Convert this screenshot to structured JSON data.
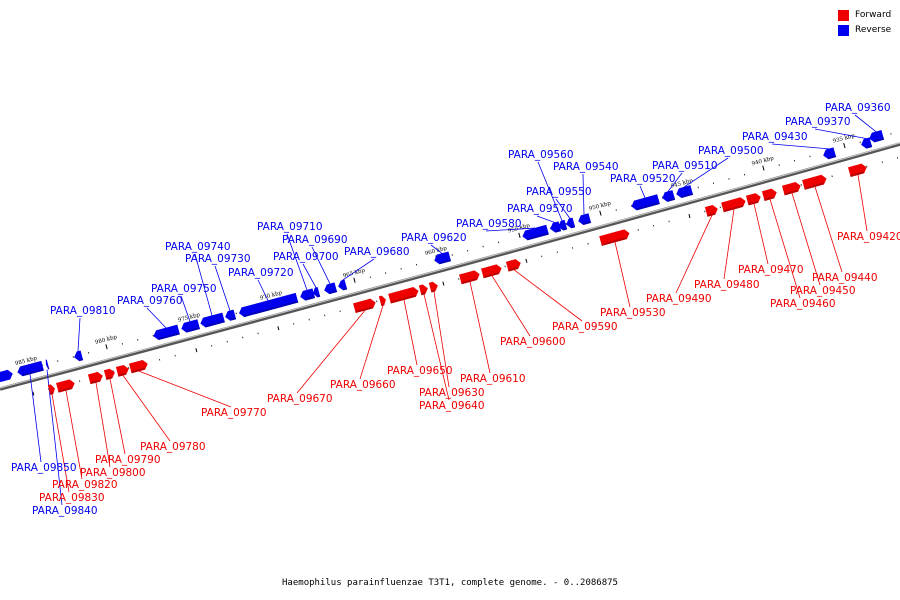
{
  "legend": {
    "forward": {
      "label": "Forward",
      "color": "#ee0000"
    },
    "reverse": {
      "label": "Reverse",
      "color": "#0000ee"
    }
  },
  "caption": "Haemophilus parainfluenzae T3T1, complete genome. - 0..2086875",
  "ticks": [
    {
      "label": "985 kbp",
      "kbp": 985
    },
    {
      "label": "980 kbp",
      "kbp": 980
    },
    {
      "label": "975 kbp",
      "kbp": 975
    },
    {
      "label": "970 kbp",
      "kbp": 970
    },
    {
      "label": "965 kbp",
      "kbp": 965
    },
    {
      "label": "960 kbp",
      "kbp": 960
    },
    {
      "label": "955 kbp",
      "kbp": 955
    },
    {
      "label": "950 kbp",
      "kbp": 950
    },
    {
      "label": "945 kbp",
      "kbp": 945
    },
    {
      "label": "940 kbp",
      "kbp": 940
    },
    {
      "label": "935 kbp",
      "kbp": 935
    }
  ],
  "genes": [
    {
      "id": "PARA_09360",
      "strand": "reverse"
    },
    {
      "id": "PARA_09370",
      "strand": "reverse"
    },
    {
      "id": "PARA_09420",
      "strand": "forward"
    },
    {
      "id": "PARA_09430",
      "strand": "reverse"
    },
    {
      "id": "PARA_09440",
      "strand": "forward"
    },
    {
      "id": "PARA_09450",
      "strand": "forward"
    },
    {
      "id": "PARA_09460",
      "strand": "forward"
    },
    {
      "id": "PARA_09470",
      "strand": "forward"
    },
    {
      "id": "PARA_09480",
      "strand": "forward"
    },
    {
      "id": "PARA_09490",
      "strand": "forward"
    },
    {
      "id": "PARA_09500",
      "strand": "reverse"
    },
    {
      "id": "PARA_09510",
      "strand": "reverse"
    },
    {
      "id": "PARA_09520",
      "strand": "reverse"
    },
    {
      "id": "PARA_09530",
      "strand": "forward"
    },
    {
      "id": "PARA_09540",
      "strand": "reverse"
    },
    {
      "id": "PARA_09550",
      "strand": "reverse"
    },
    {
      "id": "PARA_09560",
      "strand": "reverse"
    },
    {
      "id": "PARA_09570",
      "strand": "reverse"
    },
    {
      "id": "PARA_09580",
      "strand": "reverse"
    },
    {
      "id": "PARA_09590",
      "strand": "forward"
    },
    {
      "id": "PARA_09600",
      "strand": "forward"
    },
    {
      "id": "PARA_09610",
      "strand": "forward"
    },
    {
      "id": "PARA_09620",
      "strand": "reverse"
    },
    {
      "id": "PARA_09630",
      "strand": "forward"
    },
    {
      "id": "PARA_09640",
      "strand": "forward"
    },
    {
      "id": "PARA_09650",
      "strand": "forward"
    },
    {
      "id": "PARA_09660",
      "strand": "forward"
    },
    {
      "id": "PARA_09670",
      "strand": "forward"
    },
    {
      "id": "PARA_09680",
      "strand": "reverse"
    },
    {
      "id": "PARA_09690",
      "strand": "reverse"
    },
    {
      "id": "PARA_09700",
      "strand": "reverse"
    },
    {
      "id": "PARA_09710",
      "strand": "reverse"
    },
    {
      "id": "PARA_09720",
      "strand": "reverse"
    },
    {
      "id": "PARA_09730",
      "strand": "reverse"
    },
    {
      "id": "PARA_09740",
      "strand": "reverse"
    },
    {
      "id": "PARA_09750",
      "strand": "reverse"
    },
    {
      "id": "PARA_09760",
      "strand": "reverse"
    },
    {
      "id": "PARA_09770",
      "strand": "forward"
    },
    {
      "id": "PARA_09780",
      "strand": "forward"
    },
    {
      "id": "PARA_09790",
      "strand": "forward"
    },
    {
      "id": "PARA_09800",
      "strand": "forward"
    },
    {
      "id": "PARA_09810",
      "strand": "reverse"
    },
    {
      "id": "PARA_09820",
      "strand": "forward"
    },
    {
      "id": "PARA_09830",
      "strand": "forward"
    },
    {
      "id": "PARA_09840",
      "strand": "reverse"
    },
    {
      "id": "PARA_09850",
      "strand": "reverse"
    }
  ]
}
